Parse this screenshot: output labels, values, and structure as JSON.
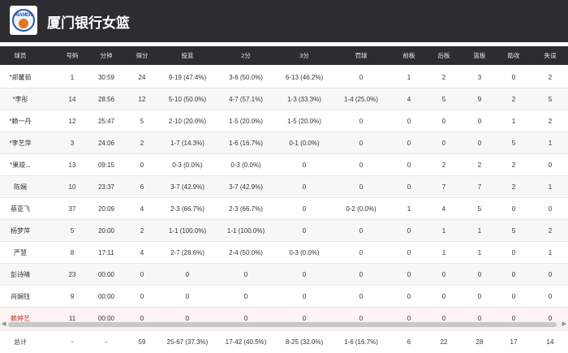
{
  "header": {
    "team_name": "厦门银行女篮",
    "logo_text": "XIAMEN"
  },
  "columns": [
    "球员",
    "号码",
    "分钟",
    "得分",
    "投篮",
    "2分",
    "3分",
    "罚球",
    "前板",
    "后板",
    "篮板",
    "助攻",
    "失误"
  ],
  "players": [
    {
      "name": "*郑馨茹",
      "num": "1",
      "min": "30:59",
      "pts": "24",
      "fg": "9-19 (47.4%)",
      "p2": "3-6 (50.0%)",
      "p3": "6-13 (46.2%)",
      "ft": "0",
      "oreb": "1",
      "dreb": "2",
      "reb": "3",
      "ast": "0",
      "to": "2"
    },
    {
      "name": "*李彤",
      "num": "14",
      "min": "28:56",
      "pts": "12",
      "fg": "5-10 (50.0%)",
      "p2": "4-7 (57.1%)",
      "p3": "1-3 (33.3%)",
      "ft": "1-4 (25.0%)",
      "oreb": "4",
      "dreb": "5",
      "reb": "9",
      "ast": "2",
      "to": "5"
    },
    {
      "name": "*赖一丹",
      "num": "12",
      "min": "25:47",
      "pts": "5",
      "fg": "2-10 (20.0%)",
      "p2": "1-5 (20.0%)",
      "p3": "1-5 (20.0%)",
      "ft": "0",
      "oreb": "0",
      "dreb": "0",
      "reb": "0",
      "ast": "1",
      "to": "2"
    },
    {
      "name": "*李艺萍",
      "num": "3",
      "min": "24:06",
      "pts": "2",
      "fg": "1-7 (14.3%)",
      "p2": "1-6 (16.7%)",
      "p3": "0-1 (0.0%)",
      "ft": "0",
      "oreb": "0",
      "dreb": "0",
      "reb": "0",
      "ast": "5",
      "to": "1"
    },
    {
      "name": "*果竣...",
      "num": "13",
      "min": "09:15",
      "pts": "0",
      "fg": "0-3 (0.0%)",
      "p2": "0-3 (0.0%)",
      "p3": "0",
      "ft": "0",
      "oreb": "0",
      "dreb": "2",
      "reb": "2",
      "ast": "2",
      "to": "0"
    },
    {
      "name": "陈娴",
      "num": "10",
      "min": "23:37",
      "pts": "6",
      "fg": "3-7 (42.9%)",
      "p2": "3-7 (42.9%)",
      "p3": "0",
      "ft": "0",
      "oreb": "0",
      "dreb": "7",
      "reb": "7",
      "ast": "2",
      "to": "1"
    },
    {
      "name": "蔡亚飞",
      "num": "37",
      "min": "20:09",
      "pts": "4",
      "fg": "2-3 (66.7%)",
      "p2": "2-3 (66.7%)",
      "p3": "0",
      "ft": "0-2 (0.0%)",
      "oreb": "1",
      "dreb": "4",
      "reb": "5",
      "ast": "0",
      "to": "0"
    },
    {
      "name": "杨梦萍",
      "num": "5",
      "min": "20:00",
      "pts": "2",
      "fg": "1-1 (100.0%)",
      "p2": "1-1 (100.0%)",
      "p3": "0",
      "ft": "0",
      "oreb": "0",
      "dreb": "1",
      "reb": "1",
      "ast": "5",
      "to": "2"
    },
    {
      "name": "严慧",
      "num": "8",
      "min": "17:11",
      "pts": "4",
      "fg": "2-7 (28.6%)",
      "p2": "2-4 (50.0%)",
      "p3": "0-3 (0.0%)",
      "ft": "0",
      "oreb": "0",
      "dreb": "1",
      "reb": "1",
      "ast": "0",
      "to": "1"
    },
    {
      "name": "彭诗晴",
      "num": "23",
      "min": "00:00",
      "pts": "0",
      "fg": "0",
      "p2": "0",
      "p3": "0",
      "ft": "0",
      "oreb": "0",
      "dreb": "0",
      "reb": "0",
      "ast": "0",
      "to": "0"
    },
    {
      "name": "肖娴钰",
      "num": "9",
      "min": "00:00",
      "pts": "0",
      "fg": "0",
      "p2": "0",
      "p3": "0",
      "ft": "0",
      "oreb": "0",
      "dreb": "0",
      "reb": "0",
      "ast": "0",
      "to": "0"
    },
    {
      "name": "赖婷艺",
      "num": "11",
      "min": "00:00",
      "pts": "0",
      "fg": "0",
      "p2": "0",
      "p3": "0",
      "ft": "0",
      "oreb": "0",
      "dreb": "0",
      "reb": "0",
      "ast": "0",
      "to": "0"
    }
  ],
  "totals": {
    "name": "总计",
    "num": "-",
    "min": "-",
    "pts": "59",
    "fg": "25-67 (37.3%)",
    "p2": "17-42 (40.5%)",
    "p3": "8-25 (32.0%)",
    "ft": "1-6 (16.7%)",
    "oreb": "6",
    "dreb": "22",
    "reb": "28",
    "ast": "17",
    "to": "14"
  },
  "colors": {
    "header_bg": "#2b2d31",
    "accent_logo": "#2a58a8",
    "highlight_row": "#fdf3f3",
    "highlight_name": "#c0392b"
  },
  "icons": {
    "scroll_left": "◀",
    "scroll_right": "▶"
  }
}
